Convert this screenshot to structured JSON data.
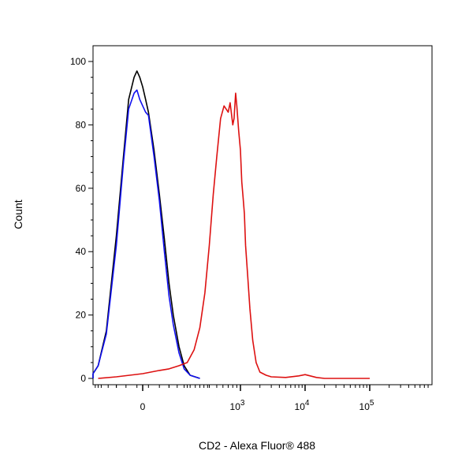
{
  "chart_data": {
    "type": "line",
    "title": "",
    "xlabel": "CD2 - Alexa Fluor® 488",
    "ylabel": "Count",
    "x_scale": "biexponential",
    "y_ticks": [
      0,
      20,
      40,
      60,
      80,
      100
    ],
    "ylim": [
      0,
      102
    ],
    "x_ticks": [
      {
        "base": "0",
        "exp": "",
        "value": 0
      },
      {
        "base": "10",
        "exp": "3",
        "value": 1000
      },
      {
        "base": "10",
        "exp": "4",
        "value": 10000
      },
      {
        "base": "10",
        "exp": "5",
        "value": 100000
      }
    ],
    "grid": false,
    "legend": "none",
    "series": [
      {
        "color": "#000000",
        "points": [
          [
            -400,
            0
          ],
          [
            -300,
            0.5
          ],
          [
            -250,
            1.5
          ],
          [
            -200,
            4
          ],
          [
            -150,
            15
          ],
          [
            -100,
            45
          ],
          [
            -70,
            70
          ],
          [
            -50,
            88
          ],
          [
            -30,
            95
          ],
          [
            -20,
            97
          ],
          [
            -10,
            95
          ],
          [
            0,
            92
          ],
          [
            10,
            88
          ],
          [
            20,
            84
          ],
          [
            40,
            72
          ],
          [
            60,
            58
          ],
          [
            80,
            44
          ],
          [
            100,
            30
          ],
          [
            120,
            20
          ],
          [
            150,
            10
          ],
          [
            180,
            4
          ],
          [
            220,
            1
          ],
          [
            300,
            0
          ]
        ]
      },
      {
        "color": "#1010ee",
        "points": [
          [
            -400,
            0
          ],
          [
            -300,
            0.5
          ],
          [
            -250,
            1.5
          ],
          [
            -200,
            4
          ],
          [
            -150,
            14
          ],
          [
            -100,
            42
          ],
          [
            -70,
            68
          ],
          [
            -50,
            85
          ],
          [
            -30,
            90
          ],
          [
            -20,
            91
          ],
          [
            -10,
            88
          ],
          [
            0,
            86
          ],
          [
            10,
            84
          ],
          [
            20,
            83
          ],
          [
            40,
            70
          ],
          [
            60,
            56
          ],
          [
            80,
            40
          ],
          [
            100,
            26
          ],
          [
            120,
            17
          ],
          [
            150,
            8
          ],
          [
            180,
            3
          ],
          [
            220,
            1
          ],
          [
            300,
            0
          ]
        ]
      },
      {
        "color": "#dd1111",
        "points": [
          [
            -200,
            0
          ],
          [
            -100,
            0.5
          ],
          [
            0,
            1.5
          ],
          [
            60,
            2.5
          ],
          [
            100,
            3
          ],
          [
            150,
            4
          ],
          [
            200,
            5
          ],
          [
            250,
            9
          ],
          [
            300,
            16
          ],
          [
            350,
            27
          ],
          [
            400,
            42
          ],
          [
            450,
            58
          ],
          [
            500,
            70
          ],
          [
            560,
            82
          ],
          [
            620,
            86
          ],
          [
            700,
            84
          ],
          [
            740,
            87
          ],
          [
            800,
            80
          ],
          [
            830,
            82
          ],
          [
            870,
            90
          ],
          [
            900,
            86
          ],
          [
            950,
            78
          ],
          [
            1000,
            72
          ],
          [
            1050,
            62
          ],
          [
            1100,
            57
          ],
          [
            1150,
            52
          ],
          [
            1200,
            42
          ],
          [
            1300,
            32
          ],
          [
            1400,
            22
          ],
          [
            1550,
            12
          ],
          [
            1750,
            5
          ],
          [
            2000,
            2
          ],
          [
            2500,
            1
          ],
          [
            3000,
            0.5
          ],
          [
            5000,
            0.3
          ],
          [
            8000,
            0.8
          ],
          [
            10000,
            1.2
          ],
          [
            12000,
            0.8
          ],
          [
            15000,
            0.3
          ],
          [
            20000,
            0
          ],
          [
            100000,
            0
          ]
        ]
      }
    ]
  }
}
